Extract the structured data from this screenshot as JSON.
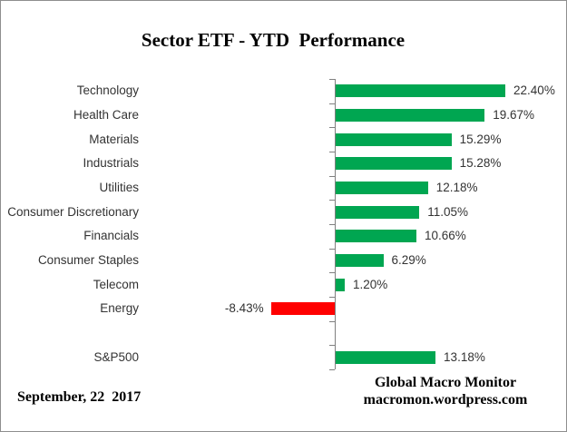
{
  "chart_data": {
    "type": "bar",
    "orientation": "horizontal",
    "title": "Sector ETF - YTD  Performance",
    "categories": [
      "Technology",
      "Health Care",
      "Materials",
      "Industrials",
      "Utilities",
      "Consumer Discretionary",
      "Financials",
      "Consumer Staples",
      "Telecom",
      "Energy",
      "",
      "S&P500"
    ],
    "values": [
      22.4,
      19.67,
      15.29,
      15.28,
      12.18,
      11.05,
      10.66,
      6.29,
      1.2,
      -8.43,
      null,
      13.18
    ],
    "value_labels": [
      "22.40%",
      "19.67%",
      "15.29%",
      "15.28%",
      "12.18%",
      "11.05%",
      "10.66%",
      "6.29%",
      "1.20%",
      "-8.43%",
      "",
      "13.18%"
    ],
    "positive_color": "#00a651",
    "negative_color": "#ff0000",
    "axis_color": "#808080",
    "grid": false,
    "legend": false
  },
  "footer": {
    "date": "September, 22  2017",
    "source_line1": "Global Macro Monitor",
    "source_line2": "macromon.wordpress.com"
  }
}
